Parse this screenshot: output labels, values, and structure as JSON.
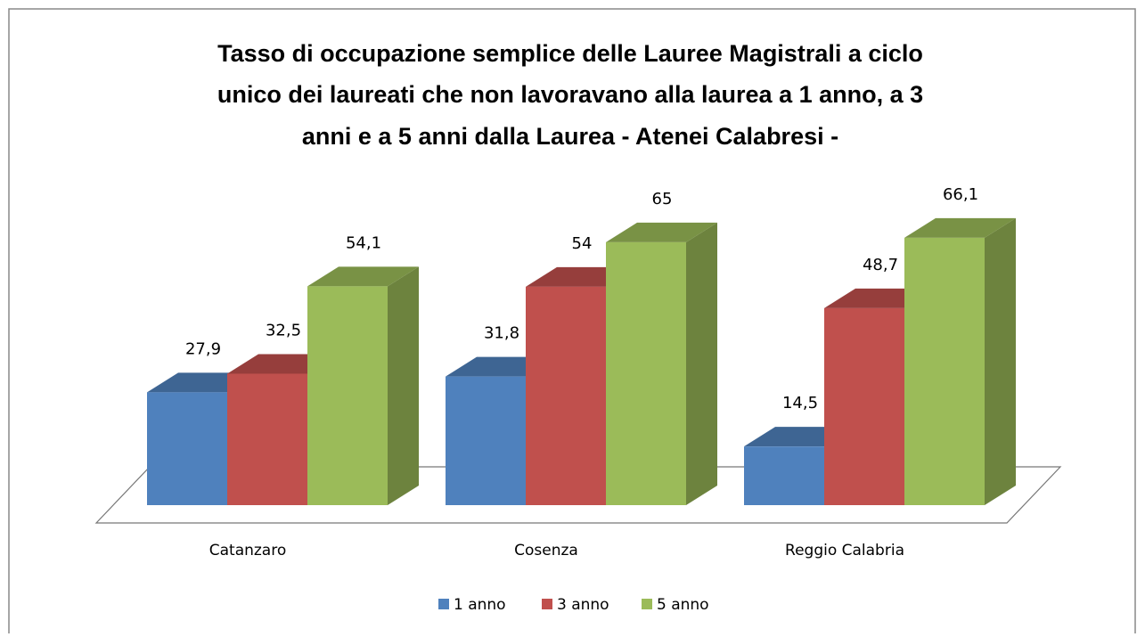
{
  "chart_data": {
    "type": "bar3d",
    "title": [
      "Tasso di occupazione semplice delle Lauree  Magistrali a ciclo",
      "unico dei laureati che non  lavoravano alla laurea a 1 anno, a 3",
      "anni e a 5 anni dalla Laurea  - Atenei Calabresi -"
    ],
    "categories": [
      "Catanzaro",
      "Cosenza",
      "Reggio Calabria"
    ],
    "series": [
      {
        "name": "1 anno",
        "color": "#4f81bd",
        "values": [
          27.9,
          31.8,
          14.5
        ],
        "value_labels": [
          "27,9",
          "31,8",
          "14,5"
        ]
      },
      {
        "name": "3 anno",
        "color": "#c0504d",
        "values": [
          32.5,
          54,
          48.7
        ],
        "value_labels": [
          "32,5",
          "54",
          "48,7"
        ]
      },
      {
        "name": "5 anno",
        "color": "#9bbb59",
        "values": [
          54.1,
          65,
          66.1
        ],
        "value_labels": [
          "54,1",
          "65",
          "66,1"
        ]
      }
    ],
    "legend": "bottom"
  }
}
